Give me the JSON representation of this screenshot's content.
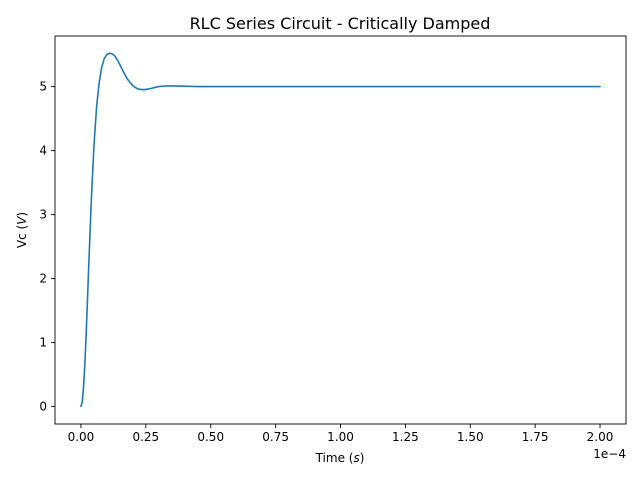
{
  "chart_data": {
    "type": "line",
    "title": "RLC Series Circuit - Critically Damped",
    "xlabel": "Time (s)",
    "xlabel_parts": [
      "Time (",
      "s",
      ")"
    ],
    "ylabel": "Vc (V)",
    "ylabel_parts": [
      "Vc (",
      "V",
      ")"
    ],
    "x_offset_label": "1e−4",
    "xlim": [
      -0.1,
      2.1
    ],
    "ylim": [
      -0.276,
      5.79
    ],
    "x_ticks": [
      0.0,
      0.25,
      0.5,
      0.75,
      1.0,
      1.25,
      1.5,
      1.75,
      2.0
    ],
    "x_tick_labels": [
      "0.00",
      "0.25",
      "0.50",
      "0.75",
      "1.00",
      "1.25",
      "1.50",
      "1.75",
      "2.00"
    ],
    "y_ticks": [
      0,
      1,
      2,
      3,
      4,
      5
    ],
    "y_tick_labels": [
      "0",
      "1",
      "2",
      "3",
      "4",
      "5"
    ],
    "x_units_note": "x values in units of 1e-4 s",
    "grid": false,
    "line_color": "#1f77b4",
    "series": [
      {
        "x": [
          0.0,
          0.005,
          0.01,
          0.015,
          0.02,
          0.025,
          0.03,
          0.04,
          0.05,
          0.06,
          0.07,
          0.08,
          0.09,
          0.1,
          0.11,
          0.12,
          0.13,
          0.14,
          0.15,
          0.16,
          0.17,
          0.18,
          0.2,
          0.22,
          0.24,
          0.26,
          0.28,
          0.3,
          0.33,
          0.36,
          0.4,
          0.45,
          0.5,
          0.6,
          0.75,
          1.0,
          1.25,
          1.5,
          1.75,
          2.0
        ],
        "y": [
          0.0,
          0.07,
          0.3,
          0.66,
          1.12,
          1.65,
          2.2,
          3.23,
          4.07,
          4.67,
          5.06,
          5.3,
          5.44,
          5.5,
          5.52,
          5.51,
          5.48,
          5.42,
          5.34,
          5.26,
          5.18,
          5.11,
          5.01,
          4.96,
          4.95,
          4.96,
          4.98,
          5.0,
          5.01,
          5.01,
          5.005,
          5.0,
          5.0,
          5.0,
          5.0,
          5.0,
          5.0,
          5.0,
          5.0,
          5.0
        ]
      }
    ]
  }
}
